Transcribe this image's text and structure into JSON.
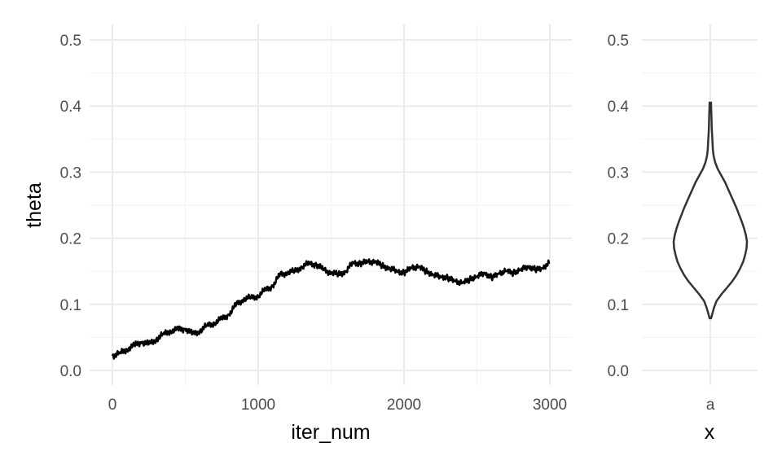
{
  "chart_data": [
    {
      "type": "line",
      "xlabel": "iter_num",
      "ylabel": "theta",
      "xlim": [
        -120,
        3120
      ],
      "ylim": [
        -0.02,
        0.52
      ],
      "x_ticks": [
        0,
        1000,
        2000,
        3000
      ],
      "x_tick_labels": [
        "0",
        "1000",
        "2000",
        "3000"
      ],
      "y_ticks": [
        0.0,
        0.1,
        0.2,
        0.3,
        0.4,
        0.5
      ],
      "y_tick_labels": [
        "0.0",
        "0.1",
        "0.2",
        "0.3",
        "0.4",
        "0.5"
      ],
      "grid": true,
      "series": [
        {
          "x": [
            0,
            50,
            100,
            150,
            200,
            250,
            300,
            350,
            400,
            450,
            500,
            550,
            600,
            650,
            700,
            750,
            800,
            850,
            900,
            950,
            1000,
            1050,
            1100,
            1150,
            1200,
            1250,
            1300,
            1350,
            1400,
            1450,
            1500,
            1550,
            1600,
            1650,
            1700,
            1750,
            1800,
            1850,
            1900,
            1950,
            2000,
            2050,
            2100,
            2150,
            2200,
            2250,
            2300,
            2350,
            2400,
            2450,
            2500,
            2550,
            2600,
            2650,
            2700,
            2750,
            2800,
            2850,
            2900,
            2950,
            3000
          ],
          "values": [
            0.022,
            0.026,
            0.032,
            0.038,
            0.043,
            0.04,
            0.047,
            0.055,
            0.06,
            0.062,
            0.063,
            0.055,
            0.06,
            0.068,
            0.072,
            0.078,
            0.085,
            0.1,
            0.108,
            0.11,
            0.113,
            0.122,
            0.128,
            0.145,
            0.148,
            0.15,
            0.157,
            0.162,
            0.16,
            0.152,
            0.148,
            0.145,
            0.15,
            0.163,
            0.162,
            0.164,
            0.165,
            0.158,
            0.155,
            0.15,
            0.148,
            0.155,
            0.157,
            0.15,
            0.145,
            0.142,
            0.14,
            0.135,
            0.132,
            0.138,
            0.142,
            0.148,
            0.14,
            0.147,
            0.15,
            0.148,
            0.152,
            0.158,
            0.152,
            0.155,
            0.163
          ]
        }
      ]
    },
    {
      "type": "violin",
      "xlabel": "x",
      "ylabel": "",
      "categories": [
        "a"
      ],
      "ylim": [
        -0.02,
        0.52
      ],
      "y_ticks": [
        0.0,
        0.1,
        0.2,
        0.3,
        0.4,
        0.5
      ],
      "y_tick_labels": [
        "0.0",
        "0.1",
        "0.2",
        "0.3",
        "0.4",
        "0.5"
      ],
      "grid": true,
      "density": {
        "y": [
          0.079,
          0.085,
          0.095,
          0.105,
          0.115,
          0.125,
          0.135,
          0.145,
          0.155,
          0.165,
          0.175,
          0.185,
          0.195,
          0.205,
          0.215,
          0.225,
          0.235,
          0.245,
          0.255,
          0.265,
          0.275,
          0.285,
          0.295,
          0.305,
          0.315,
          0.325,
          0.335,
          0.345,
          0.355,
          0.365,
          0.375,
          0.385,
          0.395,
          0.405
        ],
        "relative_width": [
          0.02,
          0.05,
          0.1,
          0.17,
          0.3,
          0.45,
          0.6,
          0.72,
          0.82,
          0.9,
          0.95,
          0.99,
          1.0,
          0.97,
          0.92,
          0.86,
          0.79,
          0.72,
          0.64,
          0.56,
          0.48,
          0.4,
          0.3,
          0.2,
          0.13,
          0.09,
          0.07,
          0.06,
          0.05,
          0.04,
          0.035,
          0.03,
          0.025,
          0.02
        ]
      }
    }
  ]
}
